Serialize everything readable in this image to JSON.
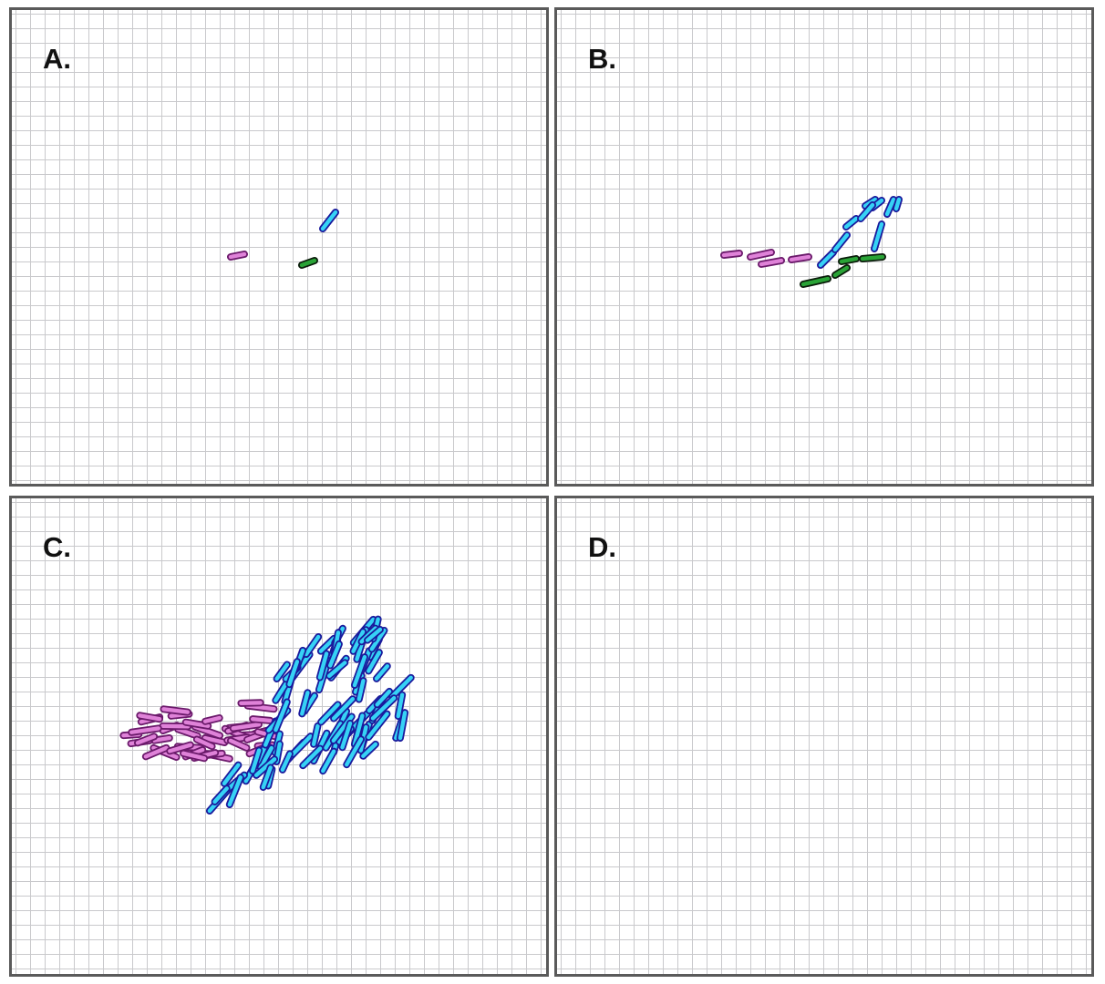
{
  "panels": [
    {
      "id": "A",
      "label": "A."
    },
    {
      "id": "B",
      "label": "B."
    },
    {
      "id": "C",
      "label": "C."
    },
    {
      "id": "D",
      "label": "D."
    }
  ],
  "colors": {
    "magenta_fill": "#df82d8",
    "magenta_outline": "#6b1a6b",
    "cyan_fill": "#36d2f5",
    "cyan_outline": "#1a1a9c",
    "green_fill": "#29a336",
    "green_outline": "#0b1d0b",
    "grid": "#c9c9cc",
    "frame": "#5a5a5a"
  }
}
